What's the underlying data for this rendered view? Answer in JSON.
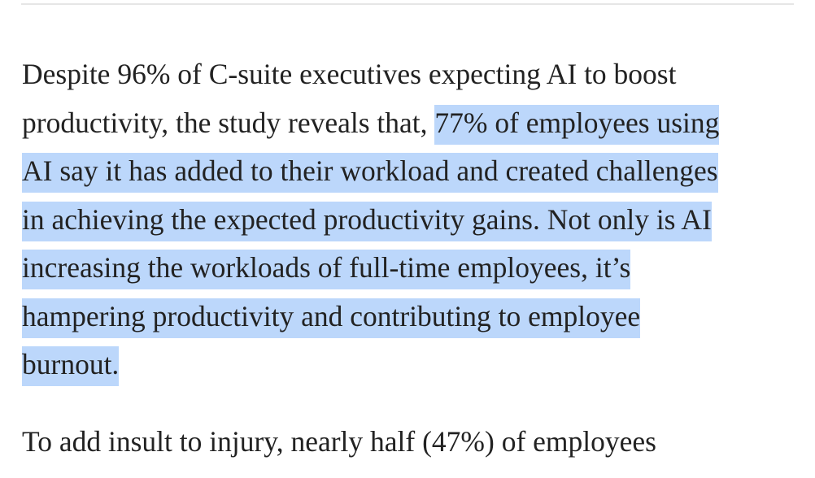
{
  "article": {
    "p1": {
      "l1": "Despite 96% of C-suite executives expecting AI to boost",
      "l2_plain": "productivity, the study reveals that, ",
      "l2_hl": "77% of employees using",
      "l3_hl": "AI say it has added to their workload and created challenges",
      "l4_hl": "in achieving the expected productivity gains. Not only is AI",
      "l5_hl": "increasing the workloads of full-time employees, it’s",
      "l6_hl": "hampering productivity and contributing to employee",
      "l7_hl": "burnout."
    },
    "p2": {
      "l1": "To add insult to injury, nearly half (47%) of employees"
    }
  },
  "colors": {
    "text": "#222222",
    "selection_highlight": "#bcd7fb",
    "rule": "#e6e6e6"
  }
}
